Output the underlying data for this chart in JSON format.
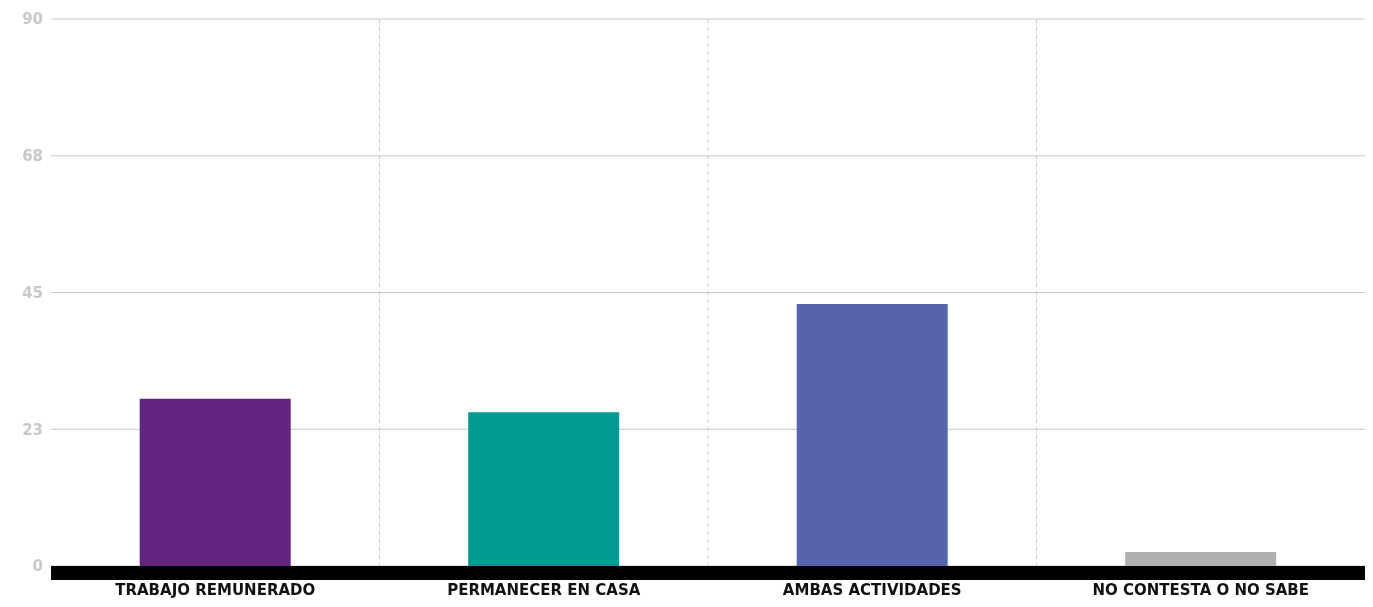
{
  "chart_data": {
    "type": "bar",
    "categories": [
      "TRABAJO REMUNERADO",
      "PERMANECER EN CASA",
      "AMBAS ACTIVIDADES",
      "NO CONTESTA O NO SABE"
    ],
    "values": [
      27.5,
      25.3,
      43.1,
      2.3
    ],
    "colors": [
      "#642580",
      "#009a93",
      "#5665ab",
      "#b0b0b0"
    ],
    "ylim": [
      0,
      90
    ],
    "yticks": [
      0,
      {
        "value": 22.5,
        "label": "23"
      },
      45,
      {
        "value": 67.5,
        "label": "68"
      },
      90
    ],
    "grid": true
  }
}
